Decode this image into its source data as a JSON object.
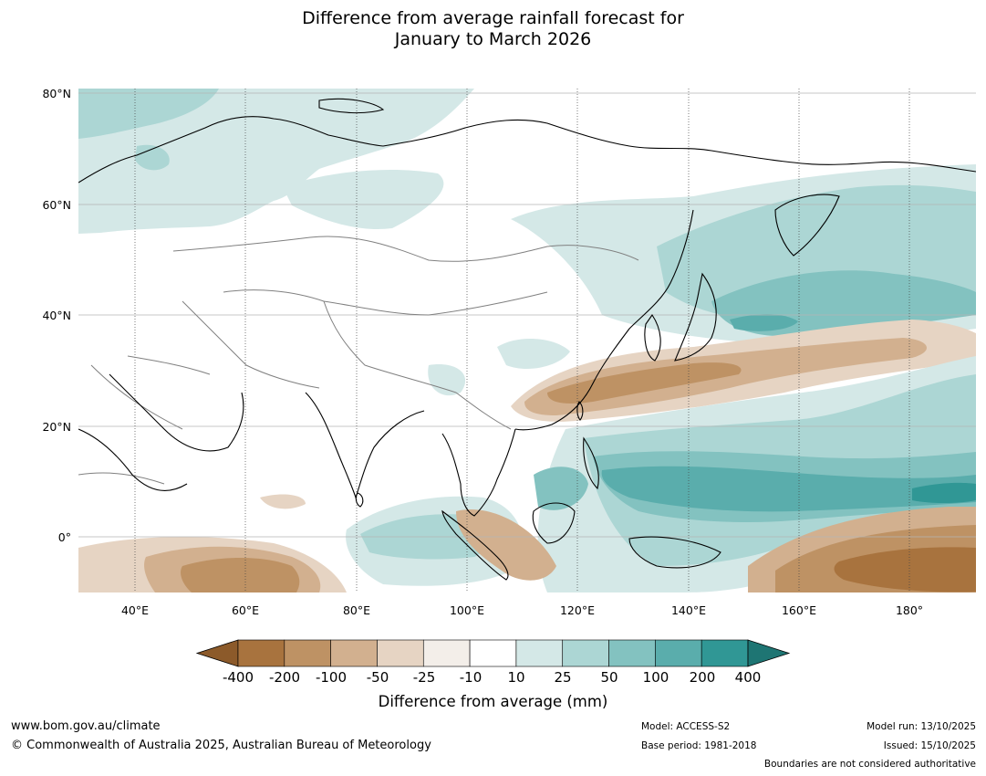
{
  "title": {
    "line1": "Difference from average rainfall forecast for",
    "line2": "January to March 2026"
  },
  "map": {
    "region": "Asia and western Pacific",
    "latitude_labels": [
      "80°N",
      "60°N",
      "40°N",
      "20°N",
      "0°"
    ],
    "longitude_labels": [
      "40°E",
      "60°E",
      "80°E",
      "100°E",
      "120°E",
      "140°E",
      "160°E",
      "180°"
    ],
    "legend_placement": "bottom",
    "colors": {
      "coastline": "#000000",
      "borders": "#808080",
      "gridlines": "#b4b4b4"
    }
  },
  "legend": {
    "ticks": [
      "-400",
      "-200",
      "-100",
      "-50",
      "-25",
      "-10",
      "10",
      "25",
      "50",
      "100",
      "200",
      "400"
    ],
    "colors": [
      "#8c5a2a",
      "#a8733e",
      "#be9264",
      "#d2b08f",
      "#e6d4c3",
      "#f3eee9",
      "#ffffff",
      "#d4e8e7",
      "#acd6d4",
      "#83c2c0",
      "#5aadac",
      "#309795",
      "#1e7573"
    ],
    "title": "Difference from average (mm)"
  },
  "footer": {
    "url": "www.bom.gov.au/climate",
    "copyright": "© Commonwealth of Australia 2025, Australian Bureau of Meteorology",
    "model": "Model: ACCESS-S2",
    "base_period": "Base period: 1981-2018",
    "model_run": "Model run: 13/10/2025",
    "issued": "Issued: 15/10/2025",
    "disclaimer": "Boundaries are not considered authoritative"
  }
}
